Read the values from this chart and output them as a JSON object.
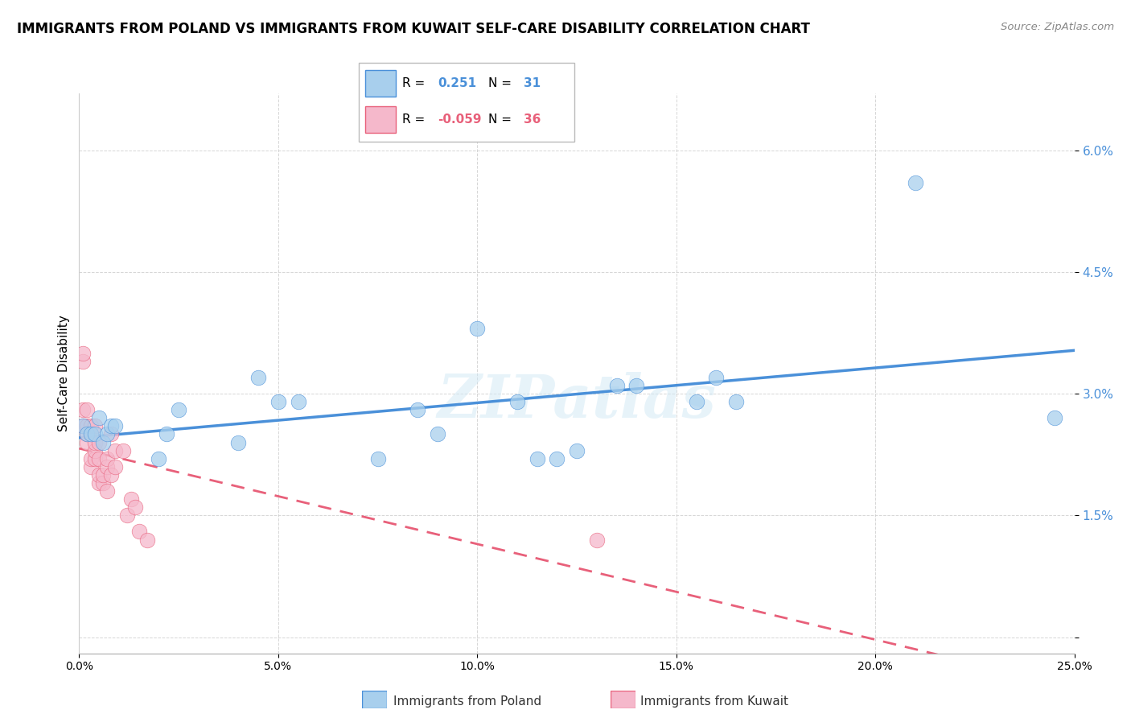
{
  "title": "IMMIGRANTS FROM POLAND VS IMMIGRANTS FROM KUWAIT SELF-CARE DISABILITY CORRELATION CHART",
  "source": "Source: ZipAtlas.com",
  "xlim": [
    0.0,
    0.25
  ],
  "ylim": [
    -0.002,
    0.067
  ],
  "yticks": [
    0.0,
    0.015,
    0.03,
    0.045,
    0.06
  ],
  "ytick_labels": [
    "",
    "1.5%",
    "3.0%",
    "4.5%",
    "6.0%"
  ],
  "xticks": [
    0.0,
    0.05,
    0.1,
    0.15,
    0.2,
    0.25
  ],
  "xtick_labels": [
    "0.0%",
    "5.0%",
    "10.0%",
    "15.0%",
    "20.0%",
    "25.0%"
  ],
  "poland_R": "0.251",
  "poland_N": "31",
  "kuwait_R": "-0.059",
  "kuwait_N": "36",
  "poland_color": "#A8CFED",
  "kuwait_color": "#F5B8CB",
  "poland_line_color": "#4A90D9",
  "kuwait_line_color": "#E8607A",
  "watermark": "ZIPatlas",
  "poland_x": [
    0.001,
    0.002,
    0.003,
    0.004,
    0.005,
    0.006,
    0.007,
    0.008,
    0.009,
    0.02,
    0.022,
    0.025,
    0.04,
    0.045,
    0.05,
    0.055,
    0.075,
    0.085,
    0.09,
    0.1,
    0.11,
    0.115,
    0.12,
    0.125,
    0.135,
    0.14,
    0.155,
    0.16,
    0.165,
    0.21,
    0.245
  ],
  "poland_y": [
    0.026,
    0.025,
    0.025,
    0.025,
    0.027,
    0.024,
    0.025,
    0.026,
    0.026,
    0.022,
    0.025,
    0.028,
    0.024,
    0.032,
    0.029,
    0.029,
    0.022,
    0.028,
    0.025,
    0.038,
    0.029,
    0.022,
    0.022,
    0.023,
    0.031,
    0.031,
    0.029,
    0.032,
    0.029,
    0.056,
    0.027
  ],
  "kuwait_x": [
    0.001,
    0.001,
    0.001,
    0.001,
    0.002,
    0.002,
    0.002,
    0.002,
    0.003,
    0.003,
    0.003,
    0.003,
    0.004,
    0.004,
    0.004,
    0.004,
    0.005,
    0.005,
    0.005,
    0.005,
    0.006,
    0.006,
    0.007,
    0.007,
    0.007,
    0.008,
    0.008,
    0.009,
    0.009,
    0.011,
    0.012,
    0.013,
    0.014,
    0.015,
    0.017,
    0.13
  ],
  "kuwait_y": [
    0.028,
    0.034,
    0.035,
    0.026,
    0.024,
    0.025,
    0.026,
    0.028,
    0.021,
    0.022,
    0.025,
    0.026,
    0.022,
    0.023,
    0.024,
    0.026,
    0.019,
    0.02,
    0.022,
    0.024,
    0.019,
    0.02,
    0.021,
    0.022,
    0.018,
    0.02,
    0.025,
    0.021,
    0.023,
    0.023,
    0.015,
    0.017,
    0.016,
    0.013,
    0.012,
    0.012
  ]
}
